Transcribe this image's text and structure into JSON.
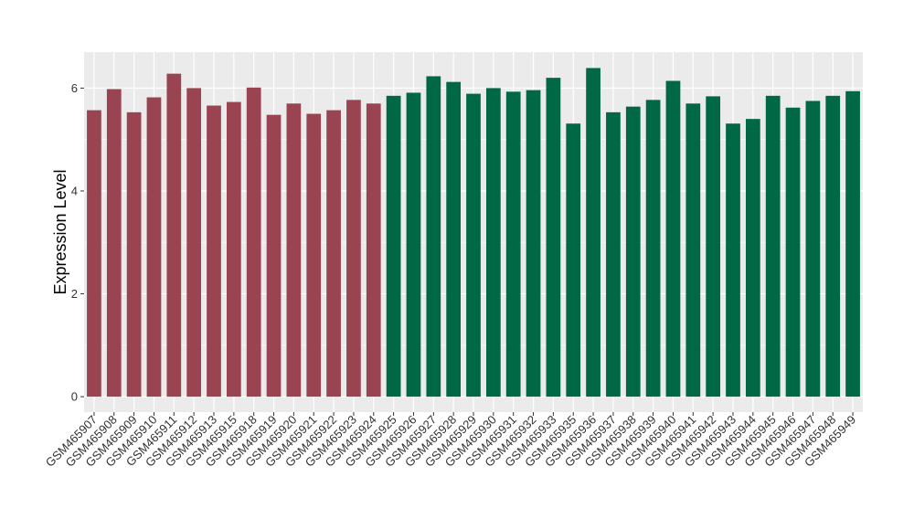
{
  "chart_data": {
    "type": "bar",
    "ylabel": "Expression Level",
    "xlabel": "",
    "ylim": [
      -0.3,
      6.7
    ],
    "yticks": [
      0,
      2,
      4,
      6
    ],
    "grid": true,
    "colors": {
      "group1": "#9b4451",
      "group2": "#006844",
      "panel": "#ebebeb",
      "grid": "#ffffff"
    },
    "categories": [
      "GSM465907",
      "GSM465908",
      "GSM465909",
      "GSM465910",
      "GSM465911",
      "GSM465912",
      "GSM465913",
      "GSM465915",
      "GSM465918",
      "GSM465919",
      "GSM465920",
      "GSM465921",
      "GSM465922",
      "GSM465923",
      "GSM465924",
      "GSM465925",
      "GSM465926",
      "GSM465927",
      "GSM465928",
      "GSM465929",
      "GSM465930",
      "GSM465931",
      "GSM465932",
      "GSM465933",
      "GSM465935",
      "GSM465936",
      "GSM465937",
      "GSM465938",
      "GSM465939",
      "GSM465940",
      "GSM465941",
      "GSM465942",
      "GSM465943",
      "GSM465944",
      "GSM465945",
      "GSM465946",
      "GSM465947",
      "GSM465948",
      "GSM465949"
    ],
    "values": [
      5.57,
      5.98,
      5.53,
      5.82,
      6.28,
      6.0,
      5.66,
      5.73,
      6.01,
      5.48,
      5.7,
      5.5,
      5.57,
      5.77,
      5.7,
      5.85,
      5.91,
      6.23,
      6.12,
      5.89,
      6.0,
      5.93,
      5.96,
      6.2,
      5.31,
      6.39,
      5.53,
      5.64,
      5.77,
      6.14,
      5.7,
      5.84,
      5.31,
      5.4,
      5.85,
      5.62,
      5.75,
      5.85,
      5.94
    ],
    "group_of_bar": [
      1,
      1,
      1,
      1,
      1,
      1,
      1,
      1,
      1,
      1,
      1,
      1,
      1,
      1,
      1,
      2,
      2,
      2,
      2,
      2,
      2,
      2,
      2,
      2,
      2,
      2,
      2,
      2,
      2,
      2,
      2,
      2,
      2,
      2,
      2,
      2,
      2,
      2,
      2
    ]
  }
}
